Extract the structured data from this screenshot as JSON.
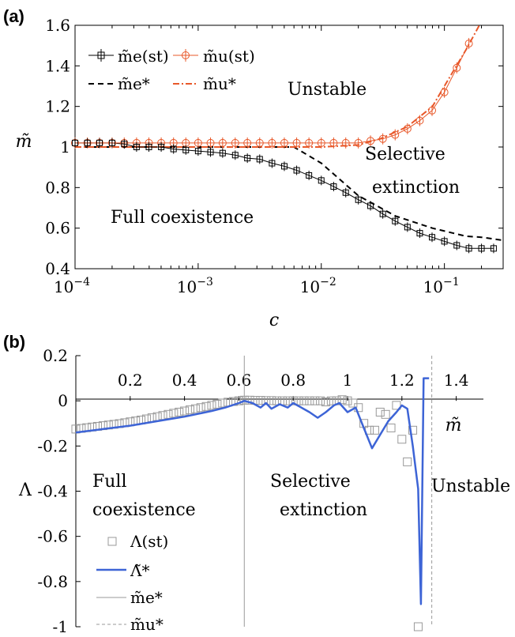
{
  "chart_data": [
    {
      "panel": "(a)",
      "type": "line",
      "xscale": "log",
      "xlabel": "c",
      "ylabel": "m̃",
      "xlim": [
        0.0001,
        0.3
      ],
      "ylim": [
        0.4,
        1.6
      ],
      "xticks": [
        "10^-4",
        "10^-3",
        "10^-2",
        "10^-1"
      ],
      "yticks": [
        "0.4",
        "0.6",
        "0.8",
        "1",
        "1.2",
        "1.4",
        "1.6"
      ],
      "legend": [
        "m̃e(st)",
        "m̃u(st)",
        "m̃e*",
        "m̃u*"
      ],
      "legend_position": "top-left",
      "colors": {
        "e": "#000000",
        "u": "#e8582a"
      },
      "regions": [
        "Unstable",
        "Selective",
        "extinction",
        "Full coexistence"
      ],
      "series": [
        {
          "name": "m̃e(st)",
          "marker": "square",
          "errorbars": true,
          "x": [
            0.0001,
            0.000126,
            0.000158,
            0.0002,
            0.000251,
            0.000316,
            0.000398,
            0.000501,
            0.000631,
            0.000794,
            0.001,
            0.00126,
            0.00158,
            0.002,
            0.00251,
            0.00316,
            0.00398,
            0.00501,
            0.00631,
            0.00794,
            0.01,
            0.0126,
            0.0158,
            0.02,
            0.0251,
            0.0316,
            0.0398,
            0.0501,
            0.0631,
            0.0794,
            0.1,
            0.126,
            0.158,
            0.2,
            0.251
          ],
          "y": [
            1.02,
            1.02,
            1.02,
            1.02,
            1.015,
            1.0,
            1.0,
            1.0,
            0.99,
            0.985,
            0.98,
            0.975,
            0.97,
            0.96,
            0.945,
            0.94,
            0.92,
            0.905,
            0.885,
            0.86,
            0.835,
            0.805,
            0.775,
            0.74,
            0.71,
            0.67,
            0.635,
            0.605,
            0.575,
            0.555,
            0.535,
            0.515,
            0.5,
            0.5,
            0.5
          ]
        },
        {
          "name": "m̃u(st)",
          "marker": "circle",
          "errorbars": true,
          "x": [
            0.0001,
            0.000126,
            0.000158,
            0.0002,
            0.000251,
            0.000316,
            0.000398,
            0.000501,
            0.000631,
            0.000794,
            0.001,
            0.00126,
            0.00158,
            0.002,
            0.00251,
            0.00316,
            0.00398,
            0.00501,
            0.00631,
            0.00794,
            0.01,
            0.0126,
            0.0158,
            0.02,
            0.0251,
            0.0316,
            0.0398,
            0.0501,
            0.0631,
            0.0794,
            0.1,
            0.126,
            0.158
          ],
          "y": [
            1.02,
            1.02,
            1.02,
            1.02,
            1.02,
            1.02,
            1.02,
            1.02,
            1.02,
            1.02,
            1.02,
            1.02,
            1.02,
            1.02,
            1.02,
            1.02,
            1.02,
            1.02,
            1.02,
            1.02,
            1.02,
            1.02,
            1.02,
            1.02,
            1.03,
            1.04,
            1.06,
            1.09,
            1.13,
            1.18,
            1.27,
            1.39,
            1.51
          ]
        },
        {
          "name": "m̃e*",
          "style": "dashed",
          "x": [
            0.0001,
            0.001,
            0.003,
            0.006,
            0.01,
            0.02,
            0.04,
            0.08,
            0.15,
            0.2,
            0.3
          ],
          "y": [
            1.0,
            1.0,
            1.0,
            1.0,
            0.92,
            0.76,
            0.66,
            0.6,
            0.56,
            0.555,
            0.54
          ]
        },
        {
          "name": "m̃u*",
          "style": "dash-dot",
          "x": [
            0.0001,
            0.001,
            0.01,
            0.02,
            0.03,
            0.05,
            0.08,
            0.1,
            0.15,
            0.2,
            0.25
          ],
          "y": [
            1.0,
            1.0,
            1.0,
            1.01,
            1.04,
            1.1,
            1.2,
            1.3,
            1.48,
            1.62,
            1.7
          ]
        }
      ]
    },
    {
      "panel": "(b)",
      "type": "scatter",
      "xlabel": "m̃",
      "ylabel": "Λ",
      "xlim": [
        0.0,
        1.5
      ],
      "ylim": [
        -1.0,
        0.2
      ],
      "xticks": [
        "0.2",
        "0.4",
        "0.6",
        "0.8",
        "1",
        "1.2",
        "1.4"
      ],
      "yticks": [
        "0.2",
        "0",
        "-0.2",
        "-0.4",
        "-0.6",
        "-0.8",
        "-1"
      ],
      "legend": [
        "Λ(st)",
        "Λ̃*",
        "m̃e*",
        "m̃u*"
      ],
      "legend_position": "bottom-left",
      "colors": {
        "curve": "#3d64d6",
        "markers": "#999999",
        "guides": "#999999"
      },
      "regions": [
        "Full",
        "coexistence",
        "Selective",
        "extinction",
        "Unstable"
      ],
      "guides": {
        "me_star": 0.62,
        "mu_star": 1.31
      },
      "series": [
        {
          "name": "Λ(st)",
          "marker": "square",
          "x": [
            0.0,
            0.02,
            0.04,
            0.06,
            0.08,
            0.1,
            0.12,
            0.14,
            0.16,
            0.18,
            0.2,
            0.22,
            0.24,
            0.26,
            0.28,
            0.3,
            0.32,
            0.34,
            0.36,
            0.38,
            0.4,
            0.42,
            0.44,
            0.46,
            0.48,
            0.5,
            0.52,
            0.54,
            0.56,
            0.58,
            0.6,
            0.62,
            0.64,
            0.66,
            0.68,
            0.7,
            0.72,
            0.74,
            0.76,
            0.78,
            0.8,
            0.82,
            0.84,
            0.86,
            0.88,
            0.9,
            0.92,
            0.94,
            0.96,
            0.98,
            1.0,
            1.02,
            1.04,
            1.06,
            1.08,
            1.1,
            1.12,
            1.14,
            1.16,
            1.18,
            1.2,
            1.22,
            1.24,
            1.26
          ],
          "y": [
            -0.125,
            -0.122,
            -0.119,
            -0.116,
            -0.113,
            -0.11,
            -0.107,
            -0.104,
            -0.101,
            -0.097,
            -0.093,
            -0.089,
            -0.085,
            -0.08,
            -0.075,
            -0.07,
            -0.065,
            -0.06,
            -0.055,
            -0.05,
            -0.045,
            -0.04,
            -0.035,
            -0.03,
            -0.025,
            -0.02,
            -0.015,
            -0.01,
            -0.006,
            -0.003,
            0.0,
            0.003,
            0.003,
            0.002,
            0.002,
            0.001,
            0.001,
            0.0,
            0.0,
            0.0,
            0.0,
            0.0,
            0.0,
            0.0,
            0.0,
            0.0,
            -0.005,
            0.0,
            0.0,
            0.005,
            0.0,
            -0.01,
            -0.03,
            -0.1,
            -0.13,
            -0.13,
            -0.05,
            -0.06,
            -0.12,
            -0.02,
            -0.17,
            -0.27,
            -0.13,
            -1.0
          ]
        },
        {
          "name": "Λ̃*",
          "style": "solid",
          "x": [
            0.0,
            0.1,
            0.2,
            0.3,
            0.4,
            0.5,
            0.55,
            0.6,
            0.62,
            0.65,
            0.68,
            0.7,
            0.72,
            0.75,
            0.78,
            0.8,
            0.83,
            0.86,
            0.89,
            0.92,
            0.95,
            0.97,
            1.0,
            1.03,
            1.06,
            1.09,
            1.12,
            1.15,
            1.18,
            1.2,
            1.22,
            1.24,
            1.26,
            1.27,
            1.28,
            1.29,
            1.3
          ],
          "y": [
            -0.14,
            -0.125,
            -0.11,
            -0.09,
            -0.07,
            -0.045,
            -0.03,
            -0.01,
            0.0,
            -0.01,
            -0.03,
            -0.01,
            -0.035,
            -0.015,
            -0.03,
            -0.01,
            -0.03,
            -0.05,
            -0.075,
            -0.05,
            -0.02,
            -0.01,
            -0.05,
            -0.03,
            -0.12,
            -0.21,
            -0.15,
            -0.09,
            -0.05,
            -0.02,
            -0.035,
            -0.2,
            -0.39,
            -0.9,
            0.1,
            0.1,
            0.1
          ]
        }
      ]
    }
  ]
}
